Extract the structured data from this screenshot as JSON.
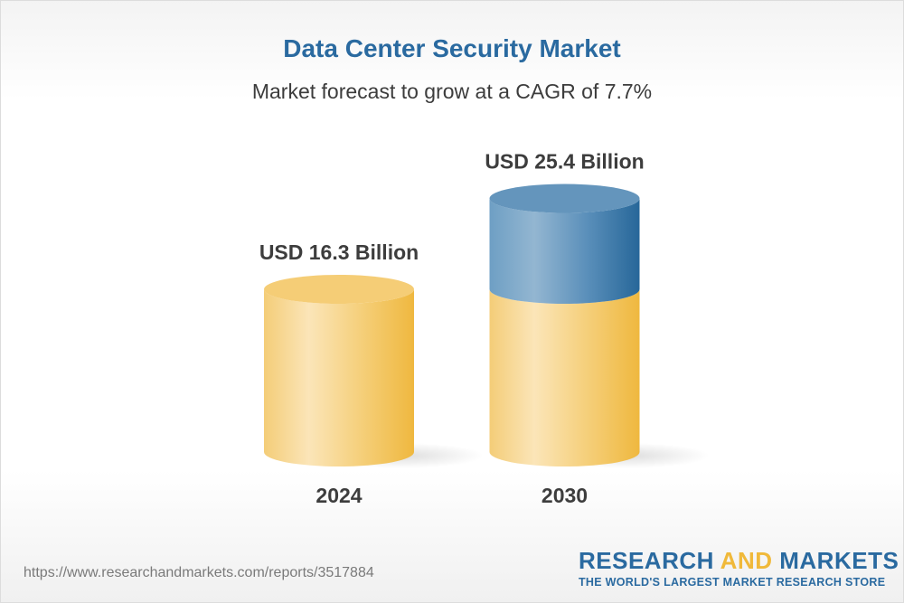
{
  "chart_data": {
    "type": "bar",
    "style": "3d-cylinder",
    "title": "Data Center Security Market",
    "subtitle": "Market forecast to grow at a CAGR of 7.7%",
    "categories": [
      "2024",
      "2030"
    ],
    "values": [
      16.3,
      25.4
    ],
    "value_labels": [
      "USD 16.3 Billion",
      "USD 25.4 Billion"
    ],
    "unit": "USD Billion",
    "ylim": [
      0,
      30
    ],
    "grid": false,
    "colors": {
      "base": "#f2c35a",
      "growth": "#3f7fb0",
      "title": "#2a6aa0"
    }
  },
  "footer": {
    "url": "https://www.researchandmarkets.com/reports/3517884",
    "logo_line1_a": "RESEARCH ",
    "logo_line1_b": "AND",
    "logo_line1_c": " MARKETS",
    "logo_line2": "THE WORLD'S LARGEST MARKET RESEARCH STORE"
  }
}
